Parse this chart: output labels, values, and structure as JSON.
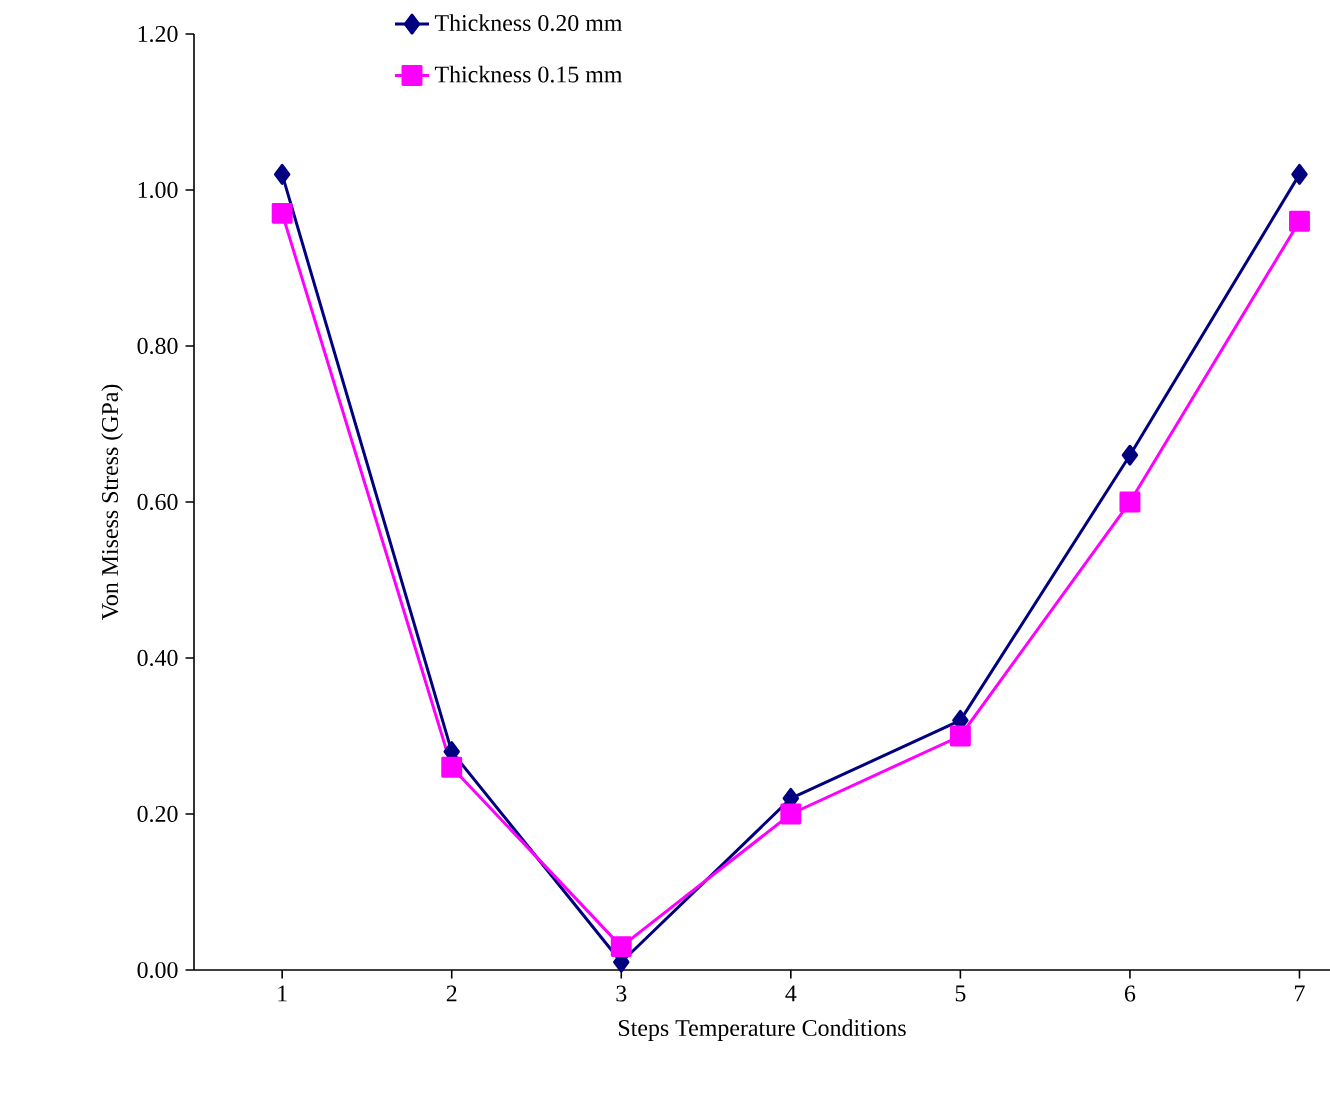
{
  "chart_data": {
    "type": "line",
    "xlabel": "Steps Temperature Conditions",
    "ylabel": "Von Misess Stress (GPa)",
    "categories": [
      "1",
      "2",
      "3",
      "4",
      "5",
      "6",
      "7"
    ],
    "series": [
      {
        "name": "Thickness 0.20 mm",
        "color": "#000080",
        "marker": "diamond",
        "values": [
          1.02,
          0.28,
          0.01,
          0.22,
          0.32,
          0.66,
          1.02
        ]
      },
      {
        "name": "Thickness 0.15 mm",
        "color": "#ff00ff",
        "marker": "square",
        "values": [
          0.97,
          0.26,
          0.03,
          0.2,
          0.3,
          0.6,
          0.96
        ]
      }
    ],
    "ylim": [
      0,
      1.2
    ],
    "yticks": [
      {
        "value": 0,
        "label": "0.00"
      },
      {
        "value": 0.2,
        "label": "0.20"
      },
      {
        "value": 0.4,
        "label": "0.40"
      },
      {
        "value": 0.6,
        "label": "0.60"
      },
      {
        "value": 0.8,
        "label": "0.80"
      },
      {
        "value": 1.0,
        "label": "1.00"
      },
      {
        "value": 1.2,
        "label": "1.20"
      }
    ],
    "grid": false,
    "legend": "top",
    "line_style": "solid"
  }
}
